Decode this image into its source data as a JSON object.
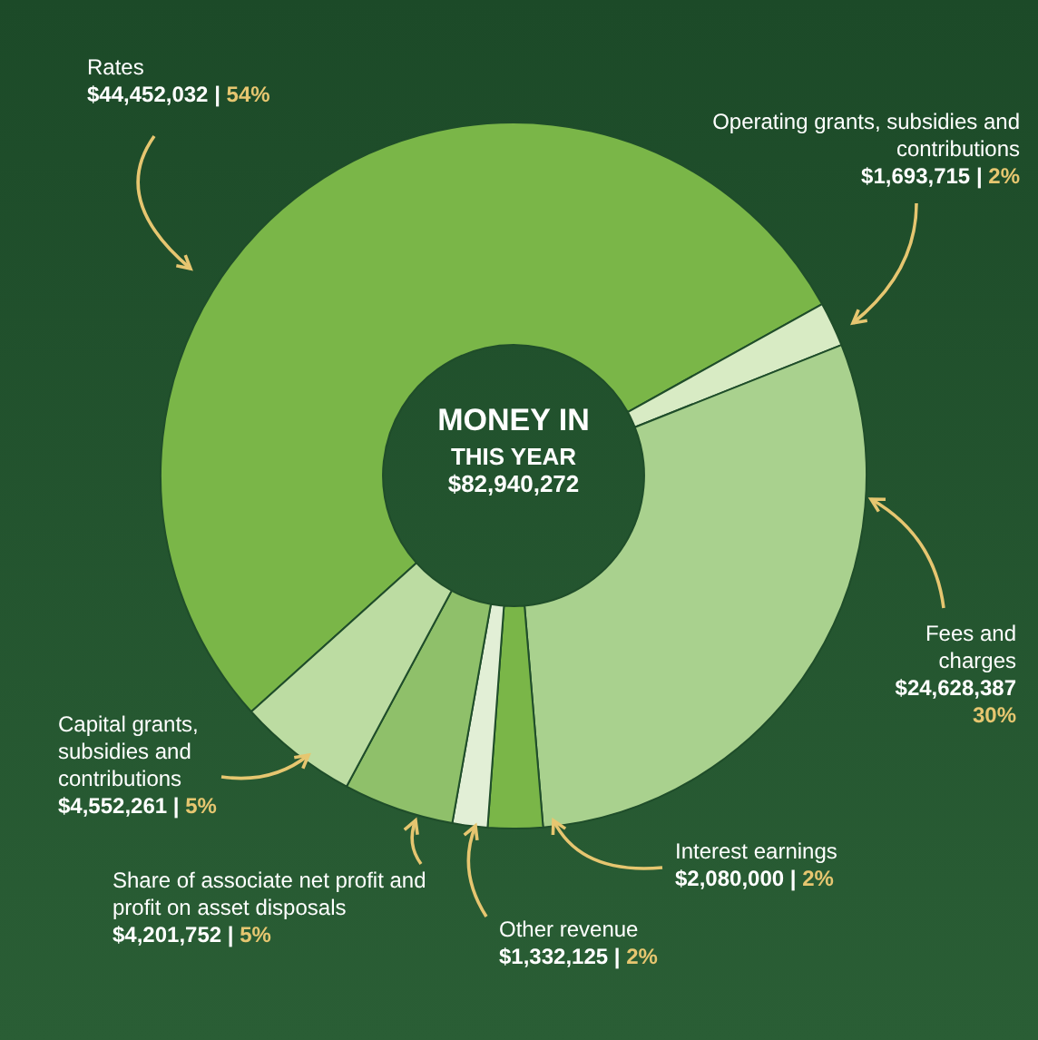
{
  "chart_data": {
    "type": "donut",
    "title": "MONEY IN",
    "subtitle": "THIS YEAR",
    "annotations": [
      "$82,940,272"
    ],
    "categories": [
      "Rates",
      "Operating grants, subsidies and contributions",
      "Fees and charges",
      "Interest earnings",
      "Other revenue",
      "Share of associate net profit and profit on asset disposals",
      "Capital grants, subsidies and contributions"
    ],
    "values": [
      44452032,
      1693715,
      24628387,
      2080000,
      1332125,
      4201752,
      4552261
    ],
    "colors": [
      "#7ab648",
      "#d8ebc4",
      "#a9d18e",
      "#7ab648",
      "#e2efd6",
      "#8fc06a",
      "#bcdca2"
    ],
    "value_labels": [
      "$44,452,032 | 54%",
      "$1,693,715 | 2%",
      "$24,628,387 30%",
      "$2,080,000 | 2%",
      "$1,332,125 | 2%",
      "$4,201,752 | 5%",
      "$4,552,261 | 5%"
    ],
    "legend": false
  }
}
